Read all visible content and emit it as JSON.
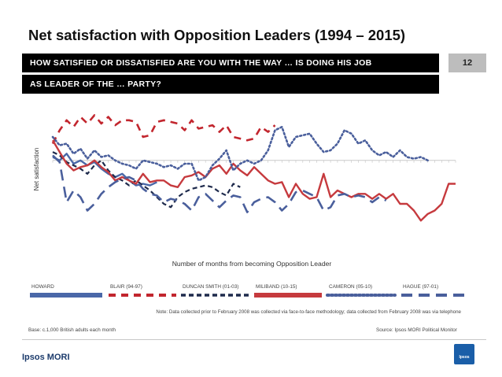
{
  "slide": {
    "title": "Net satisfaction with Opposition Leaders (1994 – 2015)",
    "subtitle_line1": "HOW SATISFIED OR DISSATISFIED ARE YOU WITH THE WAY … IS DOING HIS JOB",
    "subtitle_line2": "AS LEADER OF THE … PARTY?",
    "number": "12",
    "note": "Note: Data collected prior to February 2008 was collected via face-to-face methodology; data collected from February 2008 was via telephone",
    "base": "Base: c.1,000 British adults each month",
    "source": "Source: Ipsos MORI Political Monitor",
    "brand": "Ipsos MORI",
    "logo_text": "Ipsos"
  },
  "chart_data": {
    "type": "line",
    "title": "",
    "xlabel": "Number of months from becoming Opposition Leader",
    "ylabel": "Net satisfaction",
    "xlim": [
      1,
      59
    ],
    "ylim": [
      -50,
      30
    ],
    "zero_line": true,
    "series": [
      {
        "name": "HOWARD",
        "color": "#4a68a8",
        "dash": "solid",
        "values": [
          2,
          0,
          4,
          -2,
          0,
          -3,
          -1,
          -5,
          -8,
          -10,
          -8,
          -12,
          -15,
          -14,
          -15,
          -13
        ]
      },
      {
        "name": "BLAIR (94-97)",
        "color": "#c2262e",
        "dash": "dash",
        "values": [
          10,
          18,
          24,
          20,
          26,
          22,
          27,
          22,
          26,
          21,
          24,
          24,
          23,
          14,
          15,
          23,
          24,
          23,
          22,
          18,
          24,
          19,
          20,
          21,
          17,
          21,
          14,
          13,
          12,
          13,
          20,
          17,
          21
        ]
      },
      {
        "name": "DUNCAN SMITH (01-03)",
        "color": "#1e2a4c",
        "dash": "dashdense",
        "values": [
          5,
          3,
          -1,
          -3,
          -5,
          -8,
          -3,
          0,
          -6,
          -10,
          -12,
          -15,
          -12,
          -15,
          -18,
          -22,
          -26,
          -28,
          -22,
          -19,
          -17,
          -16,
          -15,
          -16,
          -19,
          -21,
          -14,
          -16
        ]
      },
      {
        "name": "MILIBAND (10-15)",
        "color": "#c63a3e",
        "dash": "solid",
        "values": [
          12,
          5,
          -2,
          -6,
          -4,
          -3,
          0,
          -4,
          -7,
          -12,
          -10,
          -12,
          -14,
          -8,
          -13,
          -12,
          -12,
          -15,
          -16,
          -10,
          -9,
          -7,
          -10,
          -5,
          -3,
          -8,
          -2,
          -6,
          -9,
          -4,
          -8,
          -12,
          -14,
          -13,
          -22,
          -14,
          -20,
          -23,
          -22,
          -8,
          -22,
          -18,
          -20,
          -22,
          -20,
          -20,
          -23,
          -20,
          -23,
          -20,
          -26,
          -26,
          -30,
          -36,
          -32,
          -30,
          -26,
          -14,
          -14
        ]
      },
      {
        "name": "CAMERON (05-10)",
        "color": "#4a5f9c",
        "dash": "dot",
        "values": [
          14,
          9,
          10,
          4,
          7,
          1,
          6,
          2,
          3,
          0,
          -2,
          -3,
          -5,
          0,
          -1,
          -2,
          -4,
          -3,
          -5,
          -2,
          -2,
          -12,
          -10,
          -3,
          1,
          6,
          -6,
          -2,
          0,
          -2,
          0,
          6,
          18,
          20,
          8,
          14,
          15,
          16,
          10,
          5,
          6,
          10,
          18,
          16,
          10,
          12,
          6,
          3,
          5,
          2,
          6,
          2,
          1,
          2,
          0
        ]
      },
      {
        "name": "HAGUE (97-01)",
        "color": "#4a5f9c",
        "dash": "longdash",
        "values": [
          3,
          -1,
          -25,
          -18,
          -22,
          -30,
          -26,
          -20,
          -16,
          -13,
          -11,
          -10,
          -12,
          -17,
          -20,
          -21,
          -25,
          -23,
          -24,
          -26,
          -30,
          -22,
          -20,
          -24,
          -28,
          -24,
          -21,
          -22,
          -31,
          -25,
          -23,
          -22,
          -25,
          -30,
          -26,
          -19,
          -18,
          -20,
          -22,
          -30,
          -28,
          -21,
          -20,
          -22,
          -21,
          -22,
          -25,
          -22,
          -24
        ]
      }
    ]
  }
}
